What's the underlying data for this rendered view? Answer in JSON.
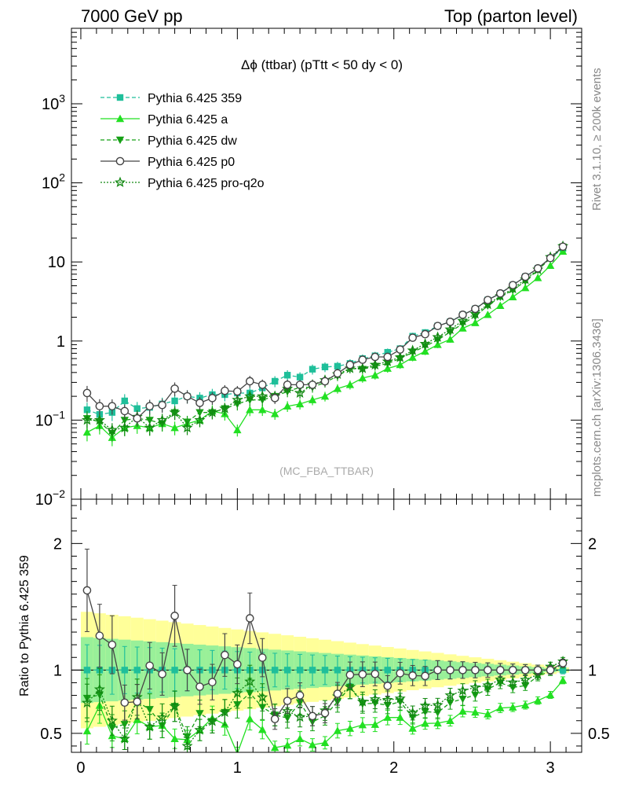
{
  "header": {
    "left": "7000 GeV pp",
    "right": "Top (parton level)"
  },
  "side_labels": {
    "rivet": "Rivet 3.1.10, ≥ 200k events",
    "mcplots": "mcplots.cern.ch [arXiv:1306.3436]"
  },
  "chart_data": {
    "type": "line",
    "title": "Δϕ (ttbar) (pTtt < 50 dy < 0)",
    "watermark": "(MC_FBA_TTBAR)",
    "ratio_ylabel": "Ratio to Pythia 6.425 359",
    "main_y_scale": "log",
    "main_ylim": [
      0.01,
      9000
    ],
    "main_y_ticks": [
      "10^-2",
      "10^-1",
      "1",
      "10",
      "10^2",
      "10^3"
    ],
    "ratio_ylim": [
      0.35,
      2.35
    ],
    "ratio_y_ticks": [
      "0.5",
      "1",
      "2"
    ],
    "xlim": [
      -0.06,
      3.2
    ],
    "x_ticks": [
      "0",
      "1",
      "2",
      "3"
    ],
    "legend_position": "top-left",
    "x": [
      0.04,
      0.12,
      0.2,
      0.28,
      0.36,
      0.44,
      0.52,
      0.6,
      0.68,
      0.76,
      0.84,
      0.92,
      1.0,
      1.08,
      1.16,
      1.24,
      1.32,
      1.4,
      1.48,
      1.56,
      1.64,
      1.72,
      1.8,
      1.88,
      1.96,
      2.04,
      2.12,
      2.2,
      2.28,
      2.36,
      2.44,
      2.52,
      2.6,
      2.68,
      2.76,
      2.84,
      2.92,
      3.0,
      3.08
    ],
    "series": [
      {
        "name": "Pythia 6.425 359",
        "color": "#1fbf9a",
        "marker": "square",
        "dash": "dashed",
        "values": [
          0.135,
          0.118,
          0.125,
          0.175,
          0.14,
          0.145,
          0.16,
          0.175,
          0.2,
          0.19,
          0.21,
          0.21,
          0.22,
          0.22,
          0.255,
          0.31,
          0.37,
          0.35,
          0.44,
          0.47,
          0.48,
          0.52,
          0.6,
          0.65,
          0.72,
          0.8,
          1.15,
          1.28,
          1.55,
          1.75,
          2.15,
          2.55,
          3.3,
          4.0,
          5.1,
          6.5,
          8.3,
          11.2,
          14.8
        ]
      },
      {
        "name": "Pythia 6.425 a",
        "color": "#22e022",
        "marker": "triangle-up",
        "dash": "solid",
        "values": [
          0.07,
          0.085,
          0.06,
          0.08,
          0.085,
          0.08,
          0.09,
          0.08,
          0.09,
          0.1,
          0.13,
          0.12,
          0.075,
          0.135,
          0.135,
          0.12,
          0.15,
          0.16,
          0.18,
          0.2,
          0.25,
          0.28,
          0.34,
          0.37,
          0.45,
          0.5,
          0.62,
          0.74,
          0.9,
          1.05,
          1.45,
          1.7,
          2.15,
          2.8,
          3.6,
          4.7,
          6.3,
          9.0,
          13.6
        ]
      },
      {
        "name": "Pythia 6.425 dw",
        "color": "#16a016",
        "marker": "triangle-down",
        "dash": "dashed",
        "values": [
          0.105,
          0.095,
          0.068,
          0.1,
          0.105,
          0.1,
          0.09,
          0.125,
          0.095,
          0.125,
          0.125,
          0.14,
          0.16,
          0.18,
          0.18,
          0.2,
          0.23,
          0.26,
          0.26,
          0.3,
          0.36,
          0.45,
          0.44,
          0.48,
          0.52,
          0.6,
          0.72,
          0.86,
          1.03,
          1.3,
          1.66,
          2.05,
          2.8,
          3.6,
          4.4,
          5.7,
          7.9,
          11.1,
          15.5
        ]
      },
      {
        "name": "Pythia 6.425 p0",
        "color": "#454545",
        "marker": "circle-open",
        "dash": "solid",
        "values": [
          0.22,
          0.15,
          0.15,
          0.13,
          0.105,
          0.15,
          0.155,
          0.25,
          0.2,
          0.165,
          0.19,
          0.235,
          0.23,
          0.31,
          0.28,
          0.19,
          0.28,
          0.28,
          0.28,
          0.31,
          0.39,
          0.5,
          0.58,
          0.63,
          0.63,
          0.78,
          1.1,
          1.22,
          1.55,
          1.75,
          2.15,
          2.55,
          3.3,
          4.0,
          5.1,
          6.5,
          8.3,
          11.2,
          15.6
        ]
      },
      {
        "name": "Pythia 6.425 pro-q2o",
        "color": "#118811",
        "marker": "star-open",
        "dash": "dotted",
        "values": [
          0.1,
          0.1,
          0.075,
          0.08,
          0.11,
          0.08,
          0.1,
          0.125,
          0.08,
          0.1,
          0.125,
          0.14,
          0.18,
          0.2,
          0.2,
          0.2,
          0.25,
          0.22,
          0.28,
          0.32,
          0.38,
          0.45,
          0.45,
          0.5,
          0.55,
          0.62,
          0.76,
          0.92,
          1.12,
          1.4,
          1.8,
          2.2,
          2.9,
          3.7,
          4.6,
          6.0,
          8.0,
          11.5,
          15.8
        ]
      }
    ]
  }
}
